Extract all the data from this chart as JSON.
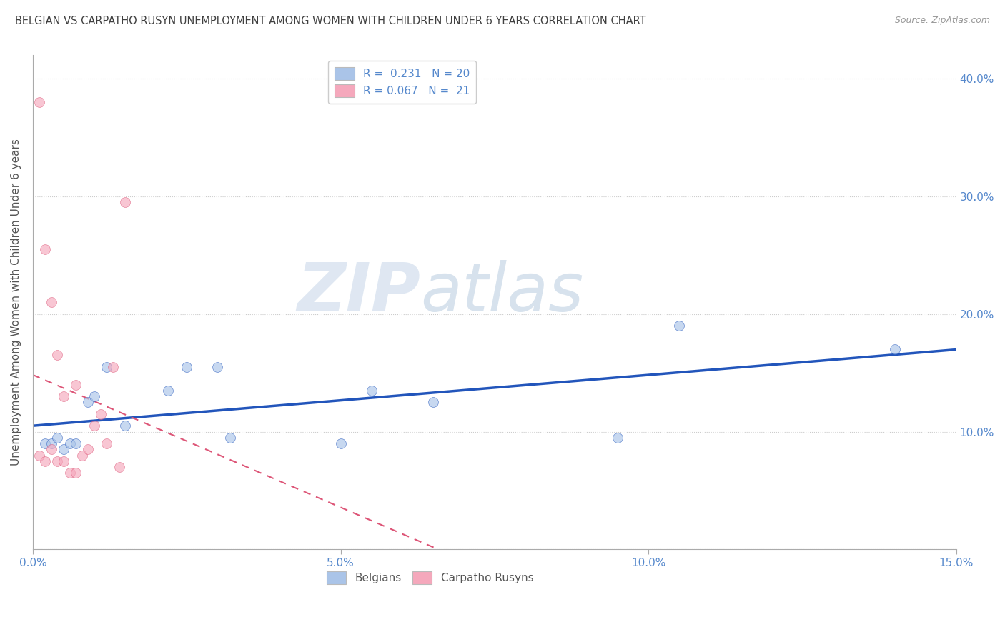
{
  "title": "BELGIAN VS CARPATHO RUSYN UNEMPLOYMENT AMONG WOMEN WITH CHILDREN UNDER 6 YEARS CORRELATION CHART",
  "source": "Source: ZipAtlas.com",
  "ylabel": "Unemployment Among Women with Children Under 6 years",
  "xlim": [
    0,
    0.15
  ],
  "ylim": [
    0,
    0.42
  ],
  "xticks": [
    0.0,
    0.05,
    0.1,
    0.15
  ],
  "xticklabels": [
    "0.0%",
    "5.0%",
    "10.0%",
    "15.0%"
  ],
  "ytick_right_values": [
    0.0,
    0.1,
    0.2,
    0.3,
    0.4
  ],
  "ytick_right_labels": [
    "",
    "10.0%",
    "20.0%",
    "30.0%",
    "40.0%"
  ],
  "belgian_R": 0.231,
  "belgian_N": 20,
  "carpatho_R": 0.067,
  "carpatho_N": 21,
  "belgian_color": "#aac4e8",
  "carpatho_color": "#f5a8bc",
  "belgian_line_color": "#2255bb",
  "carpatho_line_color": "#dd5577",
  "belgian_x": [
    0.002,
    0.003,
    0.004,
    0.005,
    0.006,
    0.007,
    0.009,
    0.01,
    0.012,
    0.015,
    0.022,
    0.025,
    0.03,
    0.032,
    0.05,
    0.055,
    0.065,
    0.095,
    0.105,
    0.14
  ],
  "belgian_y": [
    0.09,
    0.09,
    0.095,
    0.085,
    0.09,
    0.09,
    0.125,
    0.13,
    0.155,
    0.105,
    0.135,
    0.155,
    0.155,
    0.095,
    0.09,
    0.135,
    0.125,
    0.095,
    0.19,
    0.17
  ],
  "carpatho_x": [
    0.001,
    0.002,
    0.003,
    0.004,
    0.005,
    0.006,
    0.007,
    0.008,
    0.009,
    0.01,
    0.011,
    0.012,
    0.013,
    0.014,
    0.015,
    0.001,
    0.002,
    0.003,
    0.004,
    0.005,
    0.007
  ],
  "carpatho_y": [
    0.08,
    0.075,
    0.085,
    0.075,
    0.075,
    0.065,
    0.065,
    0.08,
    0.085,
    0.105,
    0.115,
    0.09,
    0.155,
    0.07,
    0.295,
    0.38,
    0.255,
    0.21,
    0.165,
    0.13,
    0.14
  ],
  "watermark_zip": "ZIP",
  "watermark_atlas": "atlas",
  "background_color": "#ffffff",
  "grid_color": "#cccccc",
  "title_color": "#404040",
  "axis_label_color": "#555555",
  "tick_label_color": "#5588cc",
  "marker_size": 100,
  "marker_alpha": 0.65,
  "legend_blue_label": "Belgians",
  "legend_pink_label": "Carpatho Rusyns",
  "figsize": [
    14.06,
    8.92
  ],
  "dpi": 100
}
